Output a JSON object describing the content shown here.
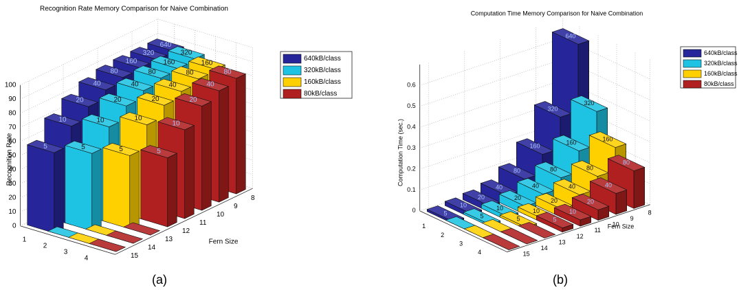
{
  "chart_data": [
    {
      "type": "bar3d",
      "title": "Recognition Rate Memory  Comparison for Naive Combination",
      "y_label": "Recognition Rate",
      "x_label": "Fern Size",
      "caption": "(a)",
      "categories": [
        15,
        14,
        13,
        12,
        11,
        10,
        9,
        8
      ],
      "series_ticks": [
        1,
        2,
        3,
        4
      ],
      "ylim": [
        0,
        100
      ],
      "yticks": [
        0,
        10,
        20,
        30,
        40,
        50,
        60,
        70,
        80,
        90,
        100
      ],
      "grid": true,
      "series": [
        {
          "name": "640kB/class",
          "color": "#26269a",
          "values": [
            57,
            70,
            78,
            84,
            87,
            88,
            88,
            88
          ],
          "bar_labels": [
            5,
            10,
            20,
            40,
            80,
            160,
            320,
            640
          ]
        },
        {
          "name": "320kB/class",
          "color": "#1ec3e3",
          "values": [
            0,
            55,
            68,
            77,
            82,
            85,
            86,
            87
          ],
          "bar_labels": [
            null,
            5,
            10,
            20,
            40,
            80,
            160,
            320
          ]
        },
        {
          "name": "160kB/class",
          "color": "#ffd000",
          "values": [
            0,
            0,
            52,
            68,
            76,
            80,
            83,
            84
          ],
          "bar_labels": [
            null,
            null,
            5,
            10,
            20,
            40,
            80,
            160
          ]
        },
        {
          "name": "80kB/class",
          "color": "#b02020",
          "values": [
            0,
            0,
            0,
            49,
            63,
            74,
            79,
            82
          ],
          "bar_labels": [
            null,
            null,
            null,
            5,
            10,
            20,
            40,
            80
          ]
        }
      ]
    },
    {
      "type": "bar3d",
      "title": "Computation Time Memory Comparison for Naive Combination",
      "y_label": "Computation Time (sec.)",
      "x_label": "Fern Size",
      "caption": "(b)",
      "categories": [
        15,
        14,
        13,
        12,
        11,
        10,
        9,
        8
      ],
      "series_ticks": [
        1,
        2,
        3,
        4
      ],
      "ylim": [
        0,
        0.7
      ],
      "yticks": [
        0,
        0.1,
        0.2,
        0.3,
        0.4,
        0.5,
        0.6
      ],
      "grid": true,
      "series": [
        {
          "name": "640kB/class",
          "color": "#26269a",
          "values": [
            0.01,
            0.02,
            0.03,
            0.05,
            0.1,
            0.19,
            0.34,
            0.66
          ],
          "bar_labels": [
            5,
            10,
            20,
            40,
            80,
            160,
            320,
            640
          ]
        },
        {
          "name": "320kB/class",
          "color": "#1ec3e3",
          "values": [
            0,
            0.01,
            0.02,
            0.04,
            0.07,
            0.12,
            0.22,
            0.38
          ],
          "bar_labels": [
            null,
            5,
            10,
            20,
            40,
            80,
            160,
            320
          ]
        },
        {
          "name": "160kB/class",
          "color": "#ffd000",
          "values": [
            0,
            0,
            0.01,
            0.02,
            0.04,
            0.08,
            0.14,
            0.25
          ],
          "bar_labels": [
            null,
            null,
            5,
            10,
            20,
            40,
            80,
            160
          ]
        },
        {
          "name": "80kB/class",
          "color": "#b02020",
          "values": [
            0,
            0,
            0,
            0.02,
            0.03,
            0.05,
            0.1,
            0.18
          ],
          "bar_labels": [
            null,
            null,
            null,
            5,
            10,
            20,
            40,
            80
          ]
        }
      ]
    }
  ]
}
